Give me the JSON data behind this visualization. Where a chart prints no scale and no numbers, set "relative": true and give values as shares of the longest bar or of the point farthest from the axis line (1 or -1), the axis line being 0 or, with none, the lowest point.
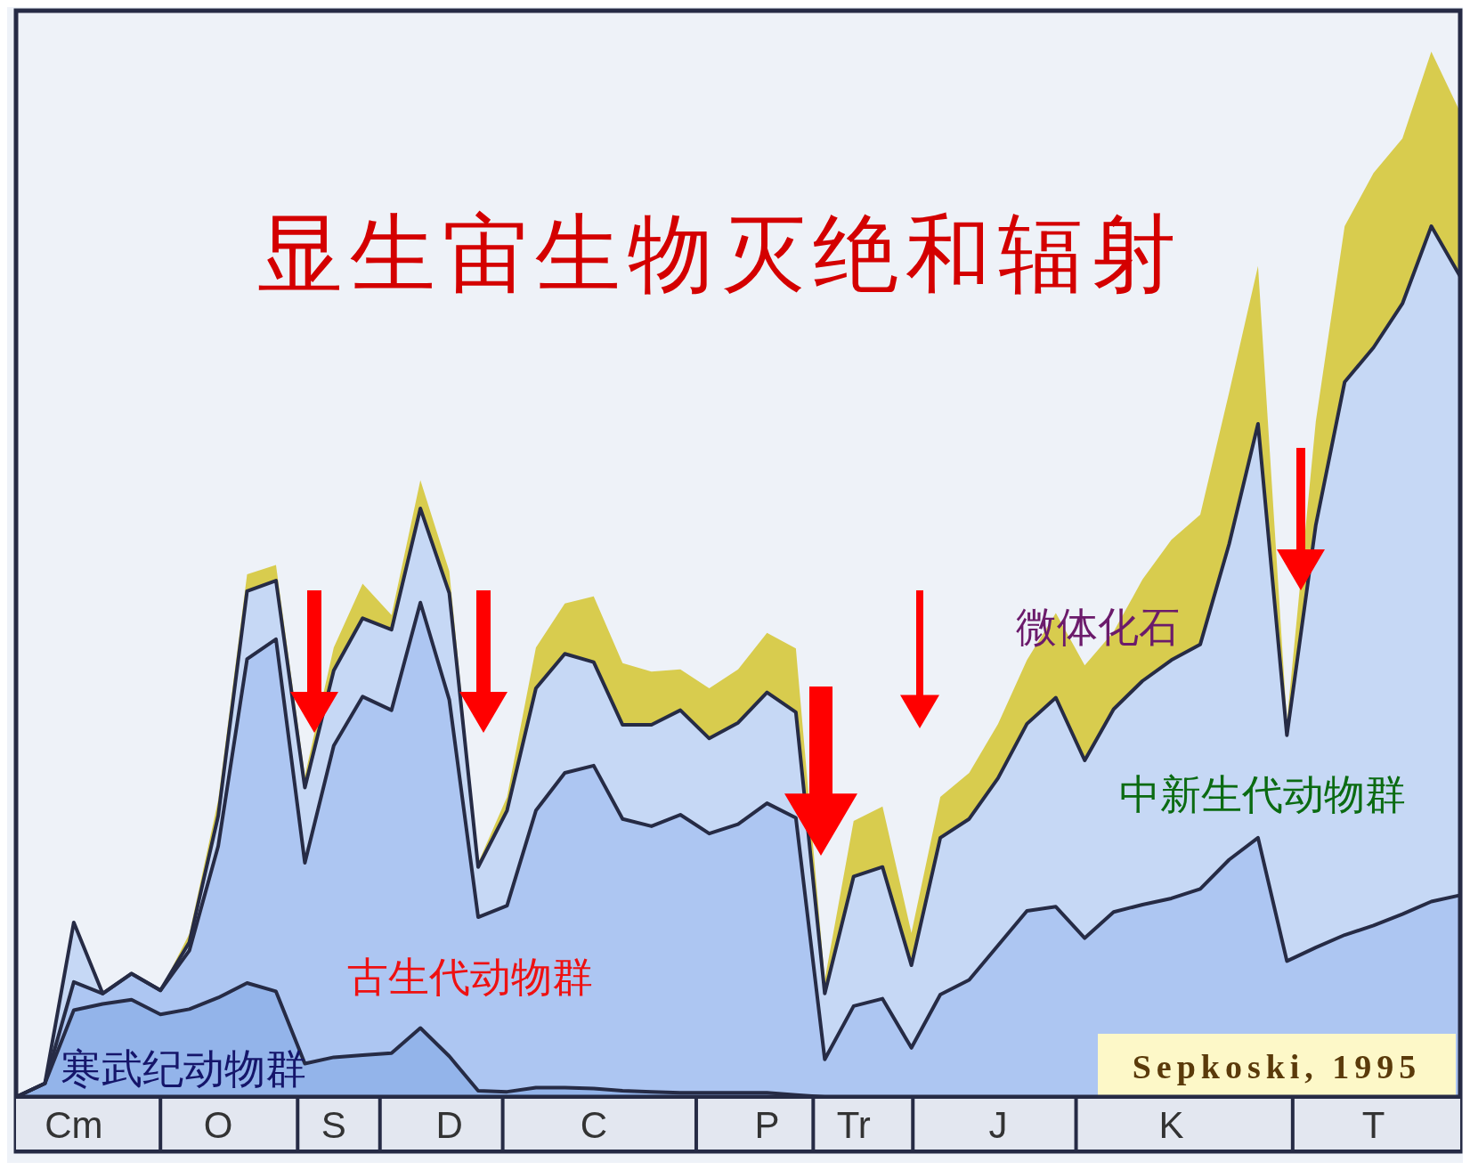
{
  "chart_data": {
    "type": "area",
    "stacked": true,
    "relative": true,
    "title": "显生宙生物灭绝和辐射",
    "annotations": [
      "Sepkoski, 1995"
    ],
    "categories": [
      null,
      null,
      "Cm",
      null,
      null,
      null,
      null,
      "O",
      null,
      null,
      null,
      "S",
      null,
      null,
      null,
      "D",
      null,
      null,
      null,
      null,
      "C",
      null,
      null,
      null,
      null,
      null,
      "P",
      null,
      null,
      "Tr",
      null,
      null,
      null,
      null,
      "J",
      null,
      null,
      null,
      null,
      null,
      "K",
      null,
      null,
      null,
      null,
      null,
      null,
      "T",
      null,
      null,
      null
    ],
    "series": [
      {
        "name": "寒武纪动物群",
        "color": "#93b4ea",
        "values": [
          0,
          0.013,
          0.083,
          0.089,
          0.093,
          0.079,
          0.084,
          0.095,
          0.109,
          0.101,
          0.032,
          0.038,
          0.04,
          0.042,
          0.066,
          0.039,
          0.006,
          0.005,
          0.009,
          0.009,
          0.008,
          0.006,
          0.005,
          0.004,
          0.004,
          0.004,
          0.004,
          0.002,
          0,
          0,
          0,
          0,
          0,
          0,
          0,
          0,
          0,
          0,
          0,
          0,
          0,
          0,
          0,
          0,
          0,
          0,
          0,
          0,
          0,
          0,
          0
        ]
      },
      {
        "name": "古生代动物群",
        "color": "#adc6f2",
        "values": [
          0,
          0,
          0.027,
          0.01,
          0.025,
          0.023,
          0.056,
          0.145,
          0.31,
          0.337,
          0.192,
          0.298,
          0.343,
          0.328,
          0.407,
          0.341,
          0.166,
          0.178,
          0.265,
          0.301,
          0.309,
          0.26,
          0.254,
          0.266,
          0.248,
          0.257,
          0.277,
          0.265,
          0.036,
          0.087,
          0.094,
          0.047,
          0.098,
          0.112,
          0.145,
          0.178,
          0.182,
          0.152,
          0.177,
          0.184,
          0.19,
          0.199,
          0.227,
          0.248,
          0.13,
          0.143,
          0.155,
          0.164,
          0.175,
          0.187,
          0.193
        ]
      },
      {
        "name": "中新生代动物群",
        "color": "#c6d8f5",
        "values": [
          0,
          0,
          0.057,
          0,
          0,
          0,
          0.008,
          0.029,
          0.065,
          0.056,
          0.072,
          0.072,
          0.075,
          0.077,
          0.09,
          0.102,
          0.048,
          0.091,
          0.117,
          0.114,
          0.099,
          0.09,
          0.097,
          0.1,
          0.091,
          0.097,
          0.106,
          0.101,
          0.063,
          0.124,
          0.126,
          0.079,
          0.15,
          0.154,
          0.16,
          0.179,
          0.2,
          0.17,
          0.194,
          0.214,
          0.228,
          0.234,
          0.302,
          0.396,
          0.216,
          0.404,
          0.529,
          0.553,
          0.584,
          0.646,
          0.592
        ]
      },
      {
        "name": "微体化石",
        "color": "#d8cc4e",
        "values": [
          0,
          0,
          0,
          0,
          0,
          0,
          0.008,
          0.015,
          0.016,
          0.015,
          0.011,
          0.022,
          0.033,
          0.014,
          0.027,
          0.021,
          0.004,
          0.013,
          0.039,
          0.048,
          0.063,
          0.059,
          0.051,
          0.039,
          0.048,
          0.051,
          0.057,
          0.061,
          0.013,
          0.053,
          0.058,
          0.031,
          0.039,
          0.044,
          0.052,
          0.061,
          0.081,
          0.091,
          0.074,
          0.097,
          0.115,
          0.124,
          0.145,
          0.151,
          0.013,
          0.099,
          0.149,
          0.167,
          0.158,
          0.167,
          0.157
        ]
      }
    ]
  }
}
